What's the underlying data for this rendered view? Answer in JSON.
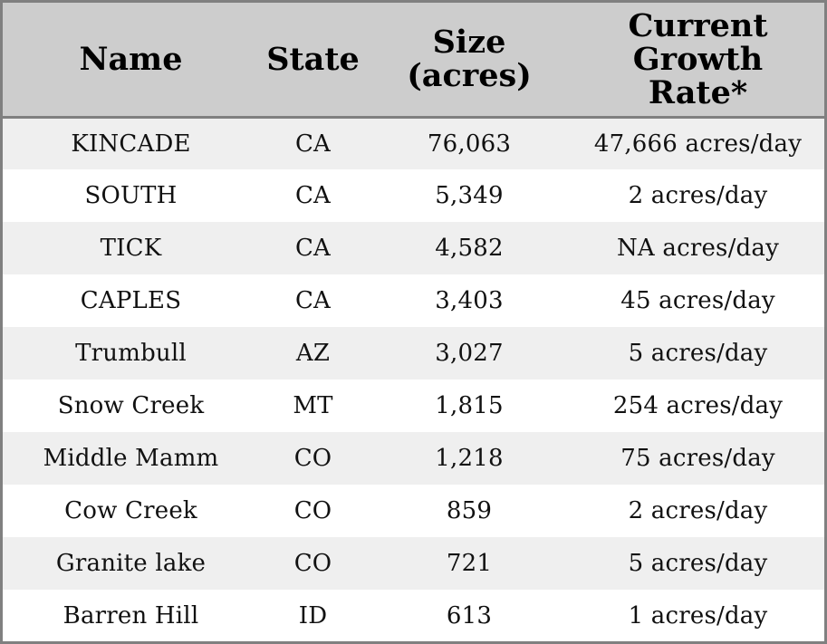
{
  "table": {
    "headers": {
      "name": "Name",
      "state": "State",
      "size_line1": "Size",
      "size_line2": "(acres)",
      "rate_line1": "Current",
      "rate_line2": "Growth",
      "rate_line3": "Rate*"
    },
    "rows": [
      {
        "name": "KINCADE",
        "state": "CA",
        "size": "76,063",
        "rate": "47,666 acres/day"
      },
      {
        "name": "SOUTH",
        "state": "CA",
        "size": "5,349",
        "rate": "2 acres/day"
      },
      {
        "name": "TICK",
        "state": "CA",
        "size": "4,582",
        "rate": "NA acres/day"
      },
      {
        "name": "CAPLES",
        "state": "CA",
        "size": "3,403",
        "rate": "45 acres/day"
      },
      {
        "name": "Trumbull",
        "state": "AZ",
        "size": "3,027",
        "rate": "5 acres/day"
      },
      {
        "name": "Snow Creek",
        "state": "MT",
        "size": "1,815",
        "rate": "254 acres/day"
      },
      {
        "name": "Middle Mamm",
        "state": "CO",
        "size": "1,218",
        "rate": "75 acres/day"
      },
      {
        "name": "Cow Creek",
        "state": "CO",
        "size": "859",
        "rate": "2 acres/day"
      },
      {
        "name": "Granite lake",
        "state": "CO",
        "size": "721",
        "rate": "5 acres/day"
      },
      {
        "name": "Barren Hill",
        "state": "ID",
        "size": "613",
        "rate": "1 acres/day"
      }
    ]
  },
  "colors": {
    "header_bg": "#cdcdcd",
    "row_alt_bg": "#efefef",
    "row_bg": "#ffffff",
    "border": "#808080"
  }
}
